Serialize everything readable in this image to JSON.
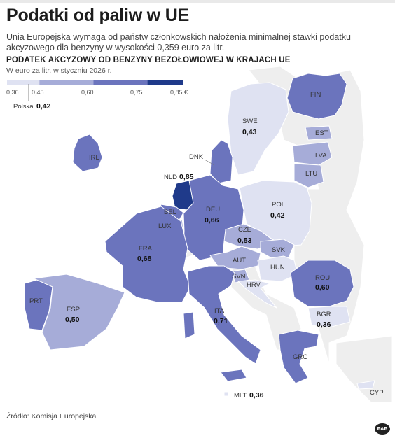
{
  "header": {
    "title": "Podatki od paliw w UE",
    "subtitle": "Unia Europejska wymaga od państw członkowskich nałożenia minimalnej stawki podatku akcyzowego dla benzyny w wysokości 0,359 euro za litr.",
    "map_title": "PODATEK AKCYZOWY OD BENZYNY BEZOŁOWIOWEJ W KRAJACH UE",
    "map_subtitle": "W euro za litr, w styczniu 2026 r."
  },
  "legend": {
    "ticks": [
      "0,36",
      "0,45",
      "0,60",
      "0,75",
      "0,85 €"
    ],
    "bins": [
      {
        "from": 0.36,
        "to": 0.45,
        "color": "#dfe2f2"
      },
      {
        "from": 0.45,
        "to": 0.6,
        "color": "#a6acd8"
      },
      {
        "from": 0.6,
        "to": 0.75,
        "color": "#6b74bd"
      },
      {
        "from": 0.75,
        "to": 0.85,
        "color": "#1f3a8a"
      }
    ],
    "marker_label": "Polska",
    "marker_value": "0,42"
  },
  "colors": {
    "map_background": "#ffffff",
    "non_eu": "#eeeeee",
    "border": "#ffffff"
  },
  "countries": [
    {
      "code": "FIN",
      "value": null,
      "color": "#6b74bd"
    },
    {
      "code": "SWE",
      "value": "0,43",
      "color": "#dfe2f2"
    },
    {
      "code": "EST",
      "value": null,
      "color": "#a6acd8"
    },
    {
      "code": "LVA",
      "value": null,
      "color": "#a6acd8"
    },
    {
      "code": "LTU",
      "value": null,
      "color": "#a6acd8"
    },
    {
      "code": "IRL",
      "value": null,
      "color": "#6b74bd"
    },
    {
      "code": "DNK",
      "value": null,
      "color": "#6b74bd"
    },
    {
      "code": "NLD",
      "value": "0,85",
      "color": "#1f3a8a"
    },
    {
      "code": "BEL",
      "value": null,
      "color": "#6b74bd"
    },
    {
      "code": "LUX",
      "value": null,
      "color": "#a6acd8"
    },
    {
      "code": "DEU",
      "value": "0,66",
      "color": "#6b74bd"
    },
    {
      "code": "POL",
      "value": "0,42",
      "color": "#dfe2f2"
    },
    {
      "code": "CZE",
      "value": "0,53",
      "color": "#a6acd8"
    },
    {
      "code": "SVK",
      "value": null,
      "color": "#a6acd8"
    },
    {
      "code": "AUT",
      "value": null,
      "color": "#a6acd8"
    },
    {
      "code": "HUN",
      "value": null,
      "color": "#dfe2f2"
    },
    {
      "code": "FRA",
      "value": "0,68",
      "color": "#6b74bd"
    },
    {
      "code": "SVN",
      "value": null,
      "color": "#a6acd8"
    },
    {
      "code": "HRV",
      "value": null,
      "color": "#dfe2f2"
    },
    {
      "code": "ROU",
      "value": "0,60",
      "color": "#6b74bd"
    },
    {
      "code": "PRT",
      "value": null,
      "color": "#6b74bd"
    },
    {
      "code": "ESP",
      "value": "0,50",
      "color": "#a6acd8"
    },
    {
      "code": "ITA",
      "value": "0,71",
      "color": "#6b74bd"
    },
    {
      "code": "BGR",
      "value": "0,36",
      "color": "#dfe2f2"
    },
    {
      "code": "GRC",
      "value": null,
      "color": "#6b74bd"
    },
    {
      "code": "MLT",
      "value": "0,36",
      "color": "#dfe2f2"
    },
    {
      "code": "CYP",
      "value": null,
      "color": "#dfe2f2"
    }
  ],
  "footer": {
    "source": "Źródło: Komisja Europejska",
    "logo": "PAP"
  }
}
